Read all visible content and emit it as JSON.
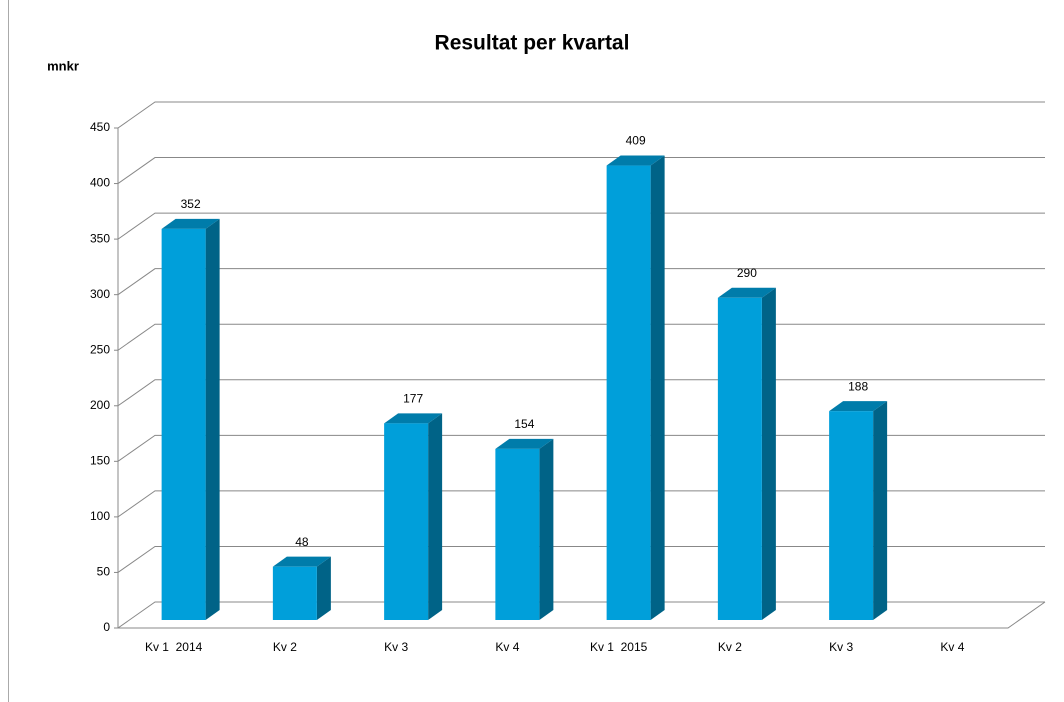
{
  "chart_data": {
    "type": "bar3d",
    "title": "Resultat per kvartal",
    "y_label": "mnkr",
    "categories": [
      "Kv 1  2014",
      "Kv 2",
      "Kv 3",
      "Kv 4",
      "Kv 1  2015",
      "Kv 2",
      "Kv 3",
      "Kv 4"
    ],
    "values": [
      352,
      48,
      177,
      154,
      409,
      290,
      188,
      null
    ],
    "color": "#009fda",
    "ylim": [
      0,
      450
    ],
    "yticks": [
      0,
      50,
      100,
      150,
      200,
      250,
      300,
      350,
      400,
      450
    ],
    "grid": true
  }
}
